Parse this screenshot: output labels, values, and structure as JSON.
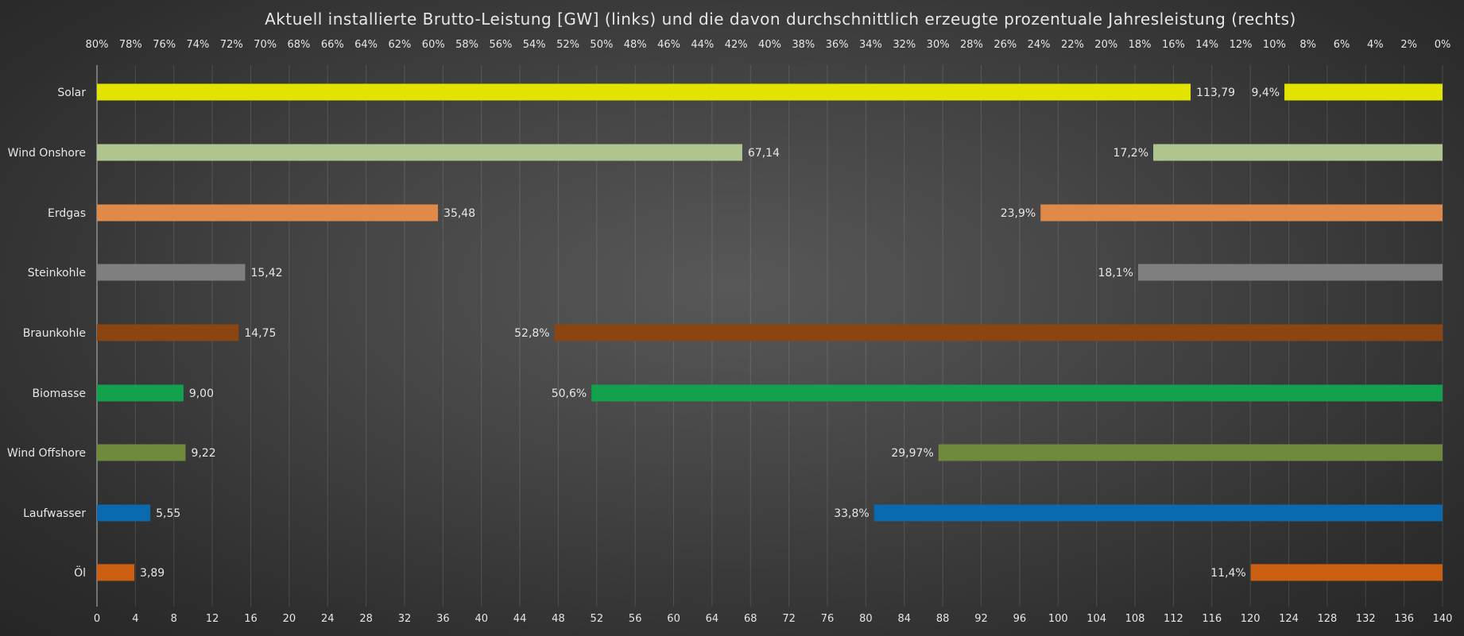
{
  "chart_data": {
    "type": "bar",
    "title": "Aktuell installierte Brutto-Leistung [GW] (links) und die davon durchschnittlich erzeugte prozentuale Jahresleistung (rechts)",
    "categories": [
      "Solar",
      "Wind Onshore",
      "Erdgas",
      "Steinkohle",
      "Braunkohle",
      "Biomasse",
      "Wind Offshore",
      "Laufwasser",
      "Öl"
    ],
    "series": [
      {
        "name": "Brutto-Leistung [GW]",
        "axis": "bottom",
        "direction": "left-to-right",
        "values": [
          113.79,
          67.14,
          35.48,
          15.42,
          14.75,
          9.0,
          9.22,
          5.55,
          3.89
        ],
        "labels": [
          "113,79",
          "67,14",
          "35,48",
          "15,42",
          "14,75",
          "9,00",
          "9,22",
          "5,55",
          "3,89"
        ]
      },
      {
        "name": "Jahresleistung [%]",
        "axis": "top",
        "direction": "right-to-left",
        "values": [
          9.4,
          17.2,
          23.9,
          18.1,
          52.8,
          50.6,
          29.97,
          33.8,
          11.4
        ],
        "labels": [
          "9,4%",
          "17,2%",
          "23,9%",
          "18,1%",
          "52,8%",
          "50,6%",
          "29,97%",
          "33,8%",
          "11,4%"
        ]
      }
    ],
    "colors": [
      "#e3e300",
      "#b0c490",
      "#e08a4a",
      "#7f7f7f",
      "#8a4512",
      "#12a24e",
      "#6f8a3a",
      "#0b69b0",
      "#cc6012"
    ],
    "xlim_bottom": [
      0,
      140
    ],
    "xticks_bottom": [
      "0",
      "4",
      "8",
      "12",
      "16",
      "20",
      "24",
      "28",
      "32",
      "36",
      "40",
      "44",
      "48",
      "52",
      "56",
      "60",
      "64",
      "68",
      "72",
      "76",
      "80",
      "84",
      "88",
      "92",
      "96",
      "100",
      "104",
      "108",
      "112",
      "116",
      "120",
      "124",
      "128",
      "132",
      "136",
      "140"
    ],
    "xlim_top": [
      80,
      0
    ],
    "xticks_top": [
      "80%",
      "78%",
      "76%",
      "74%",
      "72%",
      "70%",
      "68%",
      "66%",
      "64%",
      "62%",
      "60%",
      "58%",
      "56%",
      "54%",
      "52%",
      "50%",
      "48%",
      "46%",
      "44%",
      "42%",
      "40%",
      "38%",
      "36%",
      "34%",
      "32%",
      "30%",
      "28%",
      "26%",
      "24%",
      "22%",
      "20%",
      "18%",
      "16%",
      "14%",
      "12%",
      "10%",
      "8%",
      "6%",
      "4%",
      "2%",
      "0%"
    ],
    "grid": true
  }
}
